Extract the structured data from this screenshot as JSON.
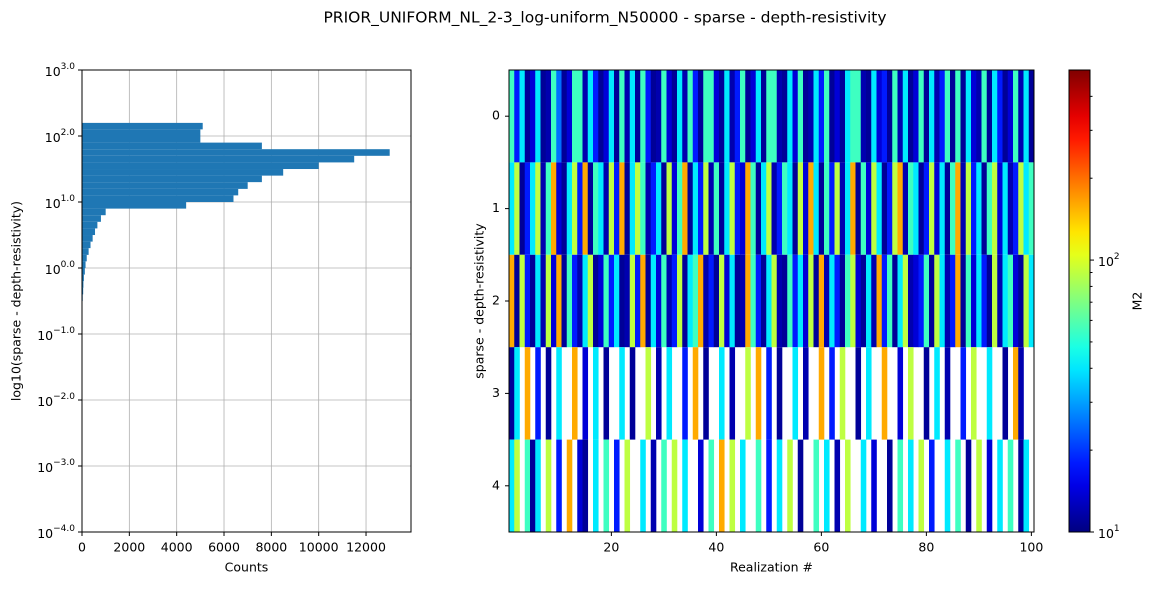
{
  "title": "PRIOR_UNIFORM_NL_2-3_log-uniform_N50000 - sparse - depth-resistivity",
  "chart_data": [
    {
      "type": "histogram",
      "orientation": "horizontal",
      "color": "#1f77b4",
      "grid": true,
      "ylog": true,
      "xlabel": "Counts",
      "ylabel": "log10(sparse - depth-resistivity)",
      "bins": [
        0.251,
        0.316,
        0.398,
        0.501,
        0.631,
        0.794,
        1,
        1.26,
        1.58,
        2,
        2.51,
        3.16,
        3.98,
        5.01,
        6.31,
        7.94,
        10,
        12.6,
        15.8,
        20,
        25.1,
        31.6,
        39.8,
        50.1,
        63.1,
        79.4,
        100,
        126,
        158
      ],
      "values": [
        20,
        30,
        50,
        60,
        80,
        120,
        150,
        200,
        280,
        360,
        450,
        550,
        650,
        800,
        1000,
        4400,
        6400,
        6600,
        7000,
        7600,
        8500,
        10000,
        11500,
        13000,
        7600,
        5000,
        5000,
        5100
      ],
      "xlim": [
        0,
        13900
      ],
      "xticks": [
        0,
        2000,
        4000,
        6000,
        8000,
        10000,
        12000
      ],
      "ylim": [
        0.0001,
        1000
      ],
      "yticks": [
        {
          "value": 1000,
          "label": "10^3.0"
        },
        {
          "value": 100,
          "label": "10^2.0"
        },
        {
          "value": 10,
          "label": "10^1.0"
        },
        {
          "value": 1,
          "label": "10^0.0"
        },
        {
          "value": 0.1,
          "label": "10^−1.0"
        },
        {
          "value": 0.01,
          "label": "10^−2.0"
        },
        {
          "value": 0.001,
          "label": "10^−3.0"
        },
        {
          "value": 0.0001,
          "label": "10^−4.0"
        }
      ]
    },
    {
      "type": "heatmap",
      "colormap": "jet",
      "xlabel": "Realization #",
      "ylabel": "sparse - depth-resistivity",
      "x": [
        1,
        2,
        3,
        4,
        5,
        6,
        7,
        8,
        9,
        10,
        11,
        12,
        13,
        14,
        15,
        16,
        17,
        18,
        19,
        20,
        21,
        22,
        23,
        24,
        25,
        26,
        27,
        28,
        29,
        30,
        31,
        32,
        33,
        34,
        35,
        36,
        37,
        38,
        39,
        40,
        41,
        42,
        43,
        44,
        45,
        46,
        47,
        48,
        49,
        50,
        51,
        52,
        53,
        54,
        55,
        56,
        57,
        58,
        59,
        60,
        61,
        62,
        63,
        64,
        65,
        66,
        67,
        68,
        69,
        70,
        71,
        72,
        73,
        74,
        75,
        76,
        77,
        78,
        79,
        80,
        81,
        82,
        83,
        84,
        85,
        86,
        87,
        88,
        89,
        90,
        91,
        92,
        93,
        94,
        95,
        96,
        97,
        98,
        99,
        100
      ],
      "y": [
        0,
        1,
        2,
        3,
        4
      ],
      "values": [
        [
          55,
          18,
          40,
          11,
          14,
          40,
          11,
          12,
          55,
          25,
          11,
          14,
          55,
          55,
          12,
          40,
          18,
          11,
          14,
          40,
          11,
          55,
          12,
          40,
          11,
          55,
          18,
          11,
          12,
          55,
          14,
          11,
          40,
          12,
          55,
          18,
          11,
          55,
          55,
          14,
          11,
          40,
          12,
          18,
          55,
          11,
          14,
          40,
          11,
          55,
          55,
          12,
          11,
          40,
          14,
          55,
          11,
          12,
          40,
          18,
          55,
          11,
          14,
          11,
          40,
          55,
          55,
          12,
          11,
          40,
          14,
          18,
          11,
          55,
          12,
          40,
          11,
          14,
          55,
          11,
          40,
          12,
          18,
          55,
          11,
          55,
          11,
          40,
          14,
          12,
          55,
          11,
          40,
          18,
          11,
          14,
          55,
          12,
          40,
          11
        ],
        [
          40,
          90,
          11,
          18,
          40,
          90,
          12,
          55,
          160,
          14,
          11,
          40,
          90,
          18,
          160,
          11,
          55,
          40,
          12,
          90,
          18,
          160,
          11,
          40,
          90,
          55,
          12,
          18,
          40,
          11,
          90,
          14,
          55,
          160,
          11,
          40,
          18,
          90,
          12,
          55,
          11,
          40,
          90,
          18,
          14,
          160,
          55,
          11,
          40,
          90,
          12,
          18,
          55,
          40,
          11,
          90,
          14,
          160,
          40,
          11,
          55,
          18,
          90,
          12,
          40,
          160,
          11,
          55,
          14,
          90,
          40,
          11,
          18,
          90,
          160,
          12,
          55,
          40,
          11,
          18,
          90,
          14,
          40,
          11,
          55,
          160,
          12,
          90,
          18,
          40,
          11,
          55,
          90,
          14,
          40,
          12,
          18,
          90,
          40,
          55
        ],
        [
          160,
          11,
          90,
          18,
          11,
          40,
          12,
          90,
          14,
          160,
          11,
          55,
          18,
          12,
          40,
          90,
          11,
          14,
          55,
          18,
          40,
          11,
          12,
          90,
          18,
          160,
          11,
          40,
          14,
          55,
          12,
          18,
          90,
          11,
          40,
          55,
          160,
          12,
          18,
          11,
          90,
          14,
          40,
          11,
          12,
          160,
          55,
          18,
          11,
          40,
          90,
          12,
          11,
          55,
          18,
          40,
          14,
          90,
          11,
          160,
          12,
          40,
          18,
          11,
          55,
          90,
          14,
          11,
          40,
          12,
          160,
          18,
          55,
          11,
          40,
          90,
          12,
          14,
          18,
          55,
          11,
          90,
          40,
          12,
          18,
          160,
          11,
          55,
          14,
          40,
          18,
          11,
          90,
          12,
          40,
          55,
          14,
          11,
          90,
          40
        ],
        [
          11,
          40,
          null,
          160,
          null,
          18,
          null,
          11,
          null,
          40,
          null,
          null,
          160,
          null,
          14,
          null,
          40,
          null,
          11,
          null,
          null,
          40,
          null,
          11,
          null,
          null,
          90,
          null,
          12,
          null,
          40,
          null,
          null,
          18,
          null,
          160,
          null,
          11,
          null,
          null,
          40,
          null,
          12,
          null,
          null,
          90,
          null,
          160,
          null,
          18,
          null,
          11,
          null,
          null,
          40,
          null,
          12,
          null,
          null,
          160,
          null,
          18,
          null,
          90,
          null,
          null,
          11,
          null,
          40,
          null,
          null,
          160,
          null,
          null,
          14,
          null,
          90,
          null,
          null,
          11,
          null,
          40,
          null,
          12,
          null,
          null,
          18,
          null,
          90,
          null,
          null,
          40,
          null,
          null,
          11,
          null,
          160,
          12,
          null,
          null
        ],
        [
          40,
          90,
          null,
          55,
          11,
          40,
          null,
          90,
          null,
          18,
          null,
          160,
          null,
          14,
          11,
          null,
          40,
          null,
          55,
          null,
          18,
          null,
          90,
          null,
          null,
          40,
          null,
          12,
          null,
          55,
          null,
          90,
          null,
          40,
          null,
          null,
          14,
          null,
          55,
          null,
          160,
          null,
          90,
          null,
          40,
          null,
          null,
          55,
          null,
          18,
          null,
          40,
          null,
          90,
          null,
          11,
          null,
          null,
          55,
          null,
          40,
          null,
          12,
          null,
          90,
          null,
          null,
          40,
          null,
          14,
          null,
          null,
          11,
          null,
          55,
          null,
          40,
          null,
          90,
          null,
          18,
          null,
          null,
          40,
          null,
          55,
          null,
          11,
          null,
          90,
          null,
          14,
          null,
          40,
          null,
          55,
          null,
          11,
          40,
          null
        ]
      ],
      "xlim": [
        0.5,
        100.5
      ],
      "xticks": [
        20,
        40,
        60,
        80,
        100
      ],
      "ylim": [
        4.5,
        -0.5
      ],
      "yticks": [
        0,
        1,
        2,
        3,
        4
      ],
      "colorbar": {
        "label": "M2",
        "lim": [
          10,
          500
        ],
        "log": true,
        "ticks": [
          {
            "value": 10,
            "label": "10^1"
          },
          {
            "value": 100,
            "label": "10^2"
          }
        ]
      }
    }
  ]
}
